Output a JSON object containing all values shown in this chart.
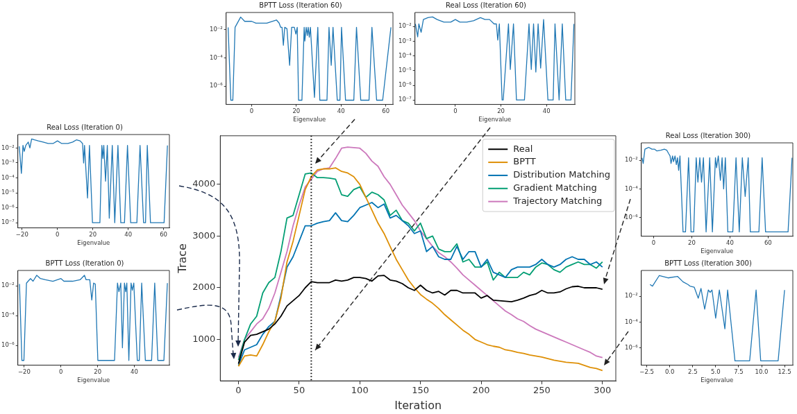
{
  "chart_data": [
    {
      "type": "line",
      "title": "BPTT Loss (Iteration 60)",
      "xlabel": "Eigenvalue",
      "log": "y",
      "xlim": [
        -11.4,
        63.2
      ],
      "xticks": [
        0,
        20,
        40,
        60
      ],
      "ylim": [
        5e-08,
        0.17
      ],
      "yticks": [
        {
          "value": 0.01,
          "label": "10⁻²"
        },
        {
          "value": 0.0001,
          "label": "10⁻⁴"
        },
        {
          "value": 1e-06,
          "label": "10⁻⁶"
        }
      ],
      "series": [
        {
          "color": "#1f77b4",
          "x": [
            -10.5,
            -9.3,
            -8.4,
            -7.4,
            -4.9,
            -3.1,
            0,
            1.9,
            6.8,
            11.1,
            12.3,
            13,
            13.6,
            14.2,
            14.8,
            15.8,
            17,
            17.9,
            19.1,
            19.8,
            20.4,
            21,
            22.5,
            23.5,
            23.8,
            24.4,
            24.9,
            25.3,
            25.8,
            26.3,
            28.1,
            29.6,
            30.5,
            33.7,
            34.6,
            35.6,
            36.4,
            38.3,
            39.5,
            40.2,
            42,
            45.7,
            46.9,
            48.8,
            52.5,
            53.8,
            55.9,
            58.6,
            62.3
          ],
          "values": [
            0.015,
            1e-07,
            1e-07,
            0.015,
            0.08,
            0.04,
            0.04,
            0.03,
            0.03,
            0.05,
            0.03,
            0.015,
            0.015,
            0.0008,
            0.015,
            0.012,
            3e-05,
            0.015,
            0.015,
            0.005,
            0.015,
            1e-07,
            1e-07,
            0.015,
            0.0016,
            0.015,
            0.004,
            0.015,
            0.003,
            0.015,
            1.6e-07,
            0.015,
            1e-07,
            1e-07,
            0.015,
            3e-05,
            0.015,
            1e-07,
            1e-07,
            0.015,
            1e-07,
            1e-07,
            0.015,
            1e-07,
            1e-07,
            0.015,
            1e-07,
            1e-07,
            0.015
          ]
        }
      ]
    },
    {
      "type": "line",
      "title": "Real Loss (Iteration 60)",
      "xlabel": "Eigenvalue",
      "log": "y",
      "xlim": [
        -17.7,
        52.4
      ],
      "xticks": [
        0,
        20,
        40
      ],
      "ylim": [
        5e-08,
        0.09
      ],
      "yticks": [
        {
          "value": 0.01,
          "label": "10⁻²"
        },
        {
          "value": 0.001,
          "label": "10⁻³"
        },
        {
          "value": 0.0001,
          "label": "10⁻⁴"
        },
        {
          "value": 1e-05,
          "label": "10⁻⁵"
        },
        {
          "value": 1e-06,
          "label": "10⁻⁶"
        },
        {
          "value": 1e-07,
          "label": "10⁻⁷"
        }
      ],
      "series": [
        {
          "color": "#1f77b4",
          "x": [
            -17.5,
            -16.5,
            -16,
            -15,
            -14,
            -12,
            -10,
            -8,
            -5,
            -2,
            0,
            2,
            5,
            8,
            11,
            13,
            15,
            17,
            18,
            18.6,
            19.3,
            20.5,
            21,
            23.3,
            24.1,
            25.5,
            26.8,
            30.3,
            32.3,
            33.3,
            34.3,
            35.3,
            36.3,
            37.4,
            38.7,
            40.6,
            42.9,
            43.7,
            45.5,
            46.9,
            48.4,
            50.7,
            52
          ],
          "values": [
            0.015,
            0.002,
            0.015,
            0.004,
            0.03,
            0.04,
            0.045,
            0.03,
            0.02,
            0.02,
            0.03,
            0.02,
            0.02,
            0.025,
            0.04,
            0.03,
            0.03,
            0.015,
            0.015,
            0.0012,
            0.015,
            1e-07,
            1e-07,
            0.015,
            1.2e-05,
            0.015,
            1e-07,
            1e-07,
            0.015,
            1.2e-05,
            0.015,
            8e-06,
            0.015,
            1.5e-05,
            0.03,
            1e-07,
            1e-07,
            0.015,
            1e-07,
            0.015,
            1e-07,
            1e-07,
            0.015
          ]
        }
      ]
    },
    {
      "type": "line",
      "title": "Real Loss (Iteration 0)",
      "xlabel": "Eigenvalue",
      "log": "y",
      "xlim": [
        -22.4,
        63.3
      ],
      "xticks": [
        {
          "value": -20,
          "label": "−20"
        },
        0,
        20,
        40,
        60
      ],
      "ylim": [
        4.5e-08,
        0.08
      ],
      "yticks": [
        {
          "value": 0.01,
          "label": "10⁻²"
        },
        {
          "value": 0.001,
          "label": "10⁻³"
        },
        {
          "value": 0.0001,
          "label": "10⁻⁴"
        },
        {
          "value": 1e-05,
          "label": "10⁻⁵"
        },
        {
          "value": 1e-06,
          "label": "10⁻⁶"
        },
        {
          "value": 1e-07,
          "label": "10⁻⁷"
        }
      ],
      "series": [
        {
          "color": "#1f77b4",
          "x": [
            -21.6,
            -20.4,
            -19.5,
            -18.8,
            -17.9,
            -16.5,
            -15.6,
            -14.6,
            -13,
            -10.9,
            -8.1,
            -5.3,
            -2.5,
            0,
            2.4,
            5.9,
            8.6,
            10.7,
            12.8,
            14.2,
            14.8,
            15.3,
            17,
            18.1,
            19.8,
            24,
            25.1,
            25.7,
            26.2,
            27.2,
            28.2,
            29.3,
            31,
            32.4,
            34.2,
            35.8,
            37.9,
            39.6,
            41.4,
            44.9,
            46.7,
            48.7,
            49.8,
            50.8,
            52.6,
            60.3,
            62.2
          ],
          "values": [
            0.013,
            0.0002,
            0.015,
            0.006,
            0.015,
            0.025,
            0.01,
            0.04,
            0.035,
            0.03,
            0.025,
            0.02,
            0.02,
            0.03,
            0.02,
            0.02,
            0.025,
            0.035,
            0.03,
            0.02,
            0.001,
            0.015,
            4.5e-06,
            0.015,
            1e-07,
            1e-07,
            0.015,
            0.002,
            0.015,
            6e-05,
            0.015,
            2e-07,
            0.015,
            1e-07,
            0.015,
            1e-07,
            1e-07,
            0.015,
            1e-07,
            1e-07,
            0.015,
            1e-07,
            1e-07,
            0.015,
            1e-07,
            1e-07,
            0.015
          ]
        }
      ]
    },
    {
      "type": "line",
      "xlabel": "Iteration",
      "ylabel": "Trace",
      "legend": "top right",
      "xlim": [
        -15,
        311
      ],
      "ylim": [
        200,
        4940
      ],
      "xticks": [
        0,
        50,
        100,
        150,
        200,
        250,
        300
      ],
      "yticks": [
        1000,
        2000,
        3000,
        4000
      ],
      "x": [
        0,
        5,
        10,
        15,
        20,
        25,
        30,
        35,
        40,
        45,
        50,
        55,
        60,
        65,
        70,
        75,
        80,
        85,
        90,
        95,
        100,
        105,
        110,
        115,
        120,
        125,
        130,
        135,
        140,
        145,
        150,
        155,
        160,
        165,
        170,
        175,
        180,
        185,
        190,
        195,
        200,
        205,
        210,
        215,
        220,
        225,
        230,
        235,
        240,
        245,
        250,
        255,
        260,
        265,
        270,
        275,
        280,
        285,
        290,
        295,
        300
      ],
      "ref_lines": [
        {
          "axis": "x",
          "value": 60,
          "color": "#000000",
          "line_style": "dotted"
        }
      ],
      "series": [
        {
          "name": "Real",
          "color": "#000000",
          "values": [
            530,
            950,
            1080,
            1100,
            1150,
            1200,
            1300,
            1450,
            1650,
            1750,
            1850,
            2000,
            2120,
            2100,
            2100,
            2100,
            2150,
            2130,
            2150,
            2200,
            2200,
            2180,
            2130,
            2230,
            2240,
            2150,
            2130,
            2080,
            2000,
            1950,
            2050,
            1950,
            1900,
            1930,
            1860,
            1950,
            1950,
            1900,
            1900,
            1900,
            1800,
            1850,
            1760,
            1750,
            1740,
            1730,
            1760,
            1800,
            1850,
            1880,
            1950,
            1900,
            1900,
            1920,
            1980,
            2020,
            2030,
            2000,
            2000,
            2000,
            1970
          ]
        },
        {
          "name": "BPTT",
          "color": "#de8f05",
          "values": [
            480,
            680,
            700,
            680,
            900,
            1150,
            1350,
            1800,
            2500,
            2900,
            3400,
            3900,
            4150,
            4280,
            4300,
            4300,
            4320,
            4250,
            4220,
            4150,
            4000,
            3750,
            3500,
            3250,
            3050,
            2800,
            2550,
            2350,
            2150,
            2000,
            1870,
            1780,
            1700,
            1600,
            1480,
            1380,
            1280,
            1180,
            1100,
            1000,
            950,
            900,
            870,
            850,
            800,
            780,
            750,
            730,
            700,
            680,
            660,
            630,
            600,
            580,
            560,
            550,
            540,
            500,
            460,
            440,
            400
          ]
        },
        {
          "name": "Distribution Matching",
          "color": "#0173b2",
          "values": [
            500,
            800,
            850,
            900,
            1100,
            1250,
            1350,
            1850,
            2400,
            2600,
            2900,
            3200,
            3200,
            3250,
            3280,
            3300,
            3450,
            3300,
            3280,
            3400,
            3550,
            3600,
            3650,
            3550,
            3620,
            3350,
            3400,
            3300,
            3200,
            3050,
            3100,
            2700,
            2800,
            2600,
            2550,
            2550,
            2800,
            2550,
            2700,
            2700,
            2400,
            2550,
            2300,
            2250,
            2200,
            2350,
            2400,
            2400,
            2400,
            2450,
            2550,
            2450,
            2400,
            2450,
            2550,
            2600,
            2550,
            2550,
            2450,
            2500,
            2400
          ]
        },
        {
          "name": "Gradient Matching",
          "color": "#029e73",
          "values": [
            600,
            1000,
            1300,
            1450,
            1900,
            2100,
            2200,
            2700,
            3350,
            3400,
            3800,
            4200,
            4220,
            4130,
            4130,
            4120,
            4100,
            3800,
            3770,
            3900,
            3950,
            3750,
            3850,
            3800,
            3700,
            3400,
            3500,
            3300,
            3250,
            3100,
            3250,
            2950,
            3000,
            2750,
            2700,
            2700,
            2850,
            2500,
            2550,
            2400,
            2400,
            2500,
            2150,
            2300,
            2200,
            2200,
            2200,
            2300,
            2250,
            2400,
            2480,
            2450,
            2350,
            2300,
            2400,
            2450,
            2500,
            2450,
            2450,
            2380,
            2500
          ]
        },
        {
          "name": "Trajectory Matching",
          "color": "#cc78bc",
          "values": [
            650,
            1000,
            1150,
            1300,
            1400,
            1600,
            1900,
            2300,
            2700,
            3200,
            3600,
            3950,
            4100,
            4250,
            4300,
            4320,
            4500,
            4700,
            4720,
            4710,
            4700,
            4600,
            4450,
            4350,
            4150,
            4000,
            3800,
            3600,
            3450,
            3300,
            3100,
            2950,
            2800,
            2680,
            2600,
            2500,
            2380,
            2250,
            2150,
            2050,
            1950,
            1850,
            1750,
            1650,
            1550,
            1480,
            1400,
            1350,
            1270,
            1200,
            1150,
            1100,
            1050,
            1000,
            950,
            900,
            850,
            800,
            750,
            680,
            650
          ]
        }
      ]
    },
    {
      "type": "line",
      "title": "Real Loss (Iteration 300)",
      "xlabel": "Eigenvalue",
      "log": "y",
      "xlim": [
        -6.5,
        73
      ],
      "xticks": [
        0,
        20,
        40,
        60
      ],
      "ylim": [
        5e-08,
        0.165
      ],
      "yticks": [
        {
          "value": 0.01,
          "label": "10⁻²"
        },
        {
          "value": 0.0001,
          "label": "10⁻⁴"
        },
        {
          "value": 1e-06,
          "label": "10⁻⁶"
        }
      ],
      "series": [
        {
          "color": "#1f77b4",
          "x": [
            -6.1,
            -5.5,
            -4.6,
            -3.5,
            -2.6,
            -0.9,
            0.4,
            1.7,
            3.7,
            5.6,
            6.9,
            7.8,
            8.6,
            9.1,
            9.9,
            10.4,
            11.2,
            11.9,
            12.5,
            13.1,
            13.8,
            15.4,
            16.7,
            18.3,
            19.6,
            21,
            22.3,
            23.2,
            24.2,
            25.1,
            26.1,
            27.5,
            29.4,
            30.8,
            32.4,
            33,
            33.9,
            35,
            35.9,
            36.7,
            37.6,
            38.9,
            41.5,
            43.2,
            44.9,
            46.5,
            48,
            49.6,
            50.7,
            55.2,
            56.9,
            58.7,
            70.5,
            72.6
          ],
          "values": [
            0.015,
            0.006,
            0.06,
            0.07,
            0.08,
            0.06,
            0.06,
            0.045,
            0.05,
            0.06,
            0.05,
            0.03,
            0.02,
            0.006,
            0.02,
            0.008,
            0.02,
            0.005,
            0.015,
            0.002,
            0.02,
            1e-07,
            1e-07,
            0.015,
            1e-07,
            1e-07,
            0.015,
            0.0003,
            0.015,
            0.0003,
            0.015,
            1e-07,
            0.015,
            1e-07,
            0.015,
            0.003,
            0.02,
            0.0004,
            0.015,
            0.0001,
            0.015,
            1e-07,
            1e-07,
            0.015,
            1e-07,
            0.015,
            3e-05,
            0.015,
            1e-07,
            1e-07,
            0.015,
            1e-07,
            1e-07,
            0.015
          ]
        }
      ]
    },
    {
      "type": "line",
      "title": "BPTT Loss (Iteration 0)",
      "xlabel": "Eigenvalue",
      "log": "y",
      "xlim": [
        -23.5,
        59.1
      ],
      "xticks": [
        {
          "value": -20,
          "label": "−20"
        },
        0,
        20,
        40
      ],
      "ylim": [
        4.8e-08,
        0.105
      ],
      "yticks": [
        {
          "value": 0.01,
          "label": "10⁻²"
        },
        {
          "value": 0.0001,
          "label": "10⁻⁴"
        },
        {
          "value": 1e-06,
          "label": "10⁻⁶"
        }
      ],
      "series": [
        {
          "color": "#1f77b4",
          "x": [
            -22.6,
            -21.3,
            -20.2,
            -18.8,
            -17.9,
            -16.6,
            -15.2,
            -13.2,
            -11.2,
            -8.5,
            -4.4,
            0,
            1.6,
            6.3,
            10.4,
            12.8,
            13.7,
            15.7,
            16.8,
            17.8,
            18.7,
            20.1,
            29.2,
            30.8,
            31.6,
            32.6,
            33.5,
            34.6,
            35.3,
            35.9,
            37,
            38.2,
            38.9,
            39.7,
            41.6,
            42.7,
            44,
            46,
            49.4,
            51.1,
            52.8,
            56.1,
            58
          ],
          "values": [
            0.013,
            1e-07,
            1e-07,
            0.015,
            0.02,
            0.03,
            0.02,
            0.05,
            0.03,
            0.025,
            0.02,
            0.03,
            0.02,
            0.02,
            0.025,
            0.05,
            0.025,
            0.025,
            0.0011,
            0.015,
            0.013,
            1e-07,
            1e-07,
            0.015,
            0.004,
            0.015,
            7e-07,
            0.015,
            0.004,
            0.015,
            1e-07,
            0.015,
            0.005,
            0.015,
            1e-07,
            1e-07,
            0.015,
            1e-07,
            1e-07,
            0.015,
            1e-07,
            1e-07,
            0.015
          ]
        }
      ]
    },
    {
      "type": "line",
      "title": "BPTT Loss (Iteration 300)",
      "xlabel": "Eigenvalue",
      "log": "y",
      "xlim": [
        -3.1,
        13.4
      ],
      "xticks": [
        {
          "value": -2.5,
          "label": "−2.5"
        },
        {
          "value": 0,
          "label": "0.0"
        },
        2.5,
        {
          "value": 5,
          "label": "5.0"
        },
        7.5,
        {
          "value": 10,
          "label": "10.0"
        },
        12.5
      ],
      "ylim": [
        4.6e-08,
        0.98
      ],
      "yticks": [
        {
          "value": 0.01,
          "label": "10⁻²"
        },
        {
          "value": 0.0001,
          "label": "10⁻⁴"
        },
        {
          "value": 1e-06,
          "label": "10⁻⁶"
        }
      ],
      "series": [
        {
          "color": "#1f77b4",
          "x": [
            -2.15,
            -1.88,
            -1.14,
            -0.19,
            0.84,
            1.44,
            1.98,
            2.2,
            2.66,
            3.1,
            3.4,
            3.8,
            4.2,
            4.4,
            4.6,
            5.0,
            5.4,
            6.0,
            6.3,
            7.1,
            8.7,
            9.4,
            9.9,
            11.8,
            12.5
          ],
          "values": [
            0.08,
            0.06,
            0.4,
            0.26,
            0.34,
            0.13,
            0.08,
            0.06,
            0.05,
            0.007,
            0.04,
            0.001,
            0.03,
            0.02,
            0.03,
            0.0002,
            0.03,
            3e-05,
            0.03,
            1e-07,
            1e-07,
            0.03,
            1e-07,
            1e-07,
            0.03
          ]
        }
      ]
    }
  ]
}
